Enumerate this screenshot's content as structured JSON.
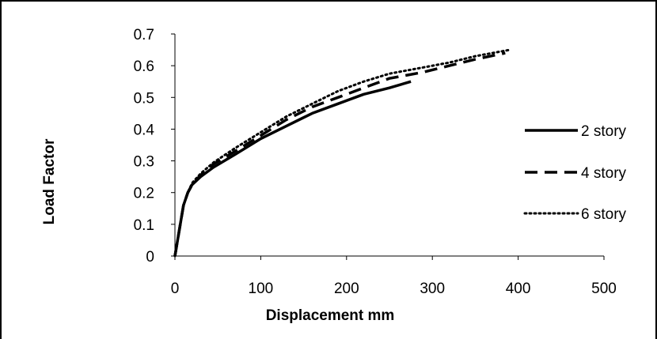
{
  "chart_data": {
    "type": "line",
    "title": "",
    "xlabel": "Displacement mm",
    "ylabel": "Load Factor",
    "xlim": [
      0,
      500
    ],
    "ylim": [
      0,
      0.7
    ],
    "x_ticks": [
      "0",
      "100",
      "200",
      "300",
      "400",
      "500"
    ],
    "y_ticks": [
      "0",
      "0.1",
      "0.2",
      "0.3",
      "0.4",
      "0.5",
      "0.6",
      "0.7"
    ],
    "grid": false,
    "legend_position": "right",
    "series": [
      {
        "name": "2 story",
        "style": "solid",
        "color": "#000000",
        "points": [
          [
            0,
            0
          ],
          [
            5,
            0.08
          ],
          [
            10,
            0.16
          ],
          [
            15,
            0.2
          ],
          [
            20,
            0.225
          ],
          [
            30,
            0.25
          ],
          [
            45,
            0.28
          ],
          [
            70,
            0.32
          ],
          [
            100,
            0.37
          ],
          [
            130,
            0.41
          ],
          [
            160,
            0.45
          ],
          [
            190,
            0.48
          ],
          [
            220,
            0.51
          ],
          [
            250,
            0.53
          ],
          [
            275,
            0.55
          ]
        ]
      },
      {
        "name": "4 story",
        "style": "dashed",
        "color": "#000000",
        "points": [
          [
            0,
            0
          ],
          [
            5,
            0.08
          ],
          [
            10,
            0.16
          ],
          [
            15,
            0.2
          ],
          [
            20,
            0.225
          ],
          [
            30,
            0.255
          ],
          [
            45,
            0.29
          ],
          [
            70,
            0.33
          ],
          [
            100,
            0.38
          ],
          [
            130,
            0.43
          ],
          [
            160,
            0.47
          ],
          [
            190,
            0.5
          ],
          [
            220,
            0.53
          ],
          [
            250,
            0.56
          ],
          [
            290,
            0.58
          ],
          [
            320,
            0.6
          ],
          [
            350,
            0.62
          ],
          [
            385,
            0.64
          ]
        ]
      },
      {
        "name": "6 story",
        "style": "dotted",
        "color": "#000000",
        "points": [
          [
            0,
            0
          ],
          [
            5,
            0.08
          ],
          [
            10,
            0.16
          ],
          [
            15,
            0.2
          ],
          [
            20,
            0.23
          ],
          [
            30,
            0.26
          ],
          [
            45,
            0.295
          ],
          [
            70,
            0.34
          ],
          [
            100,
            0.39
          ],
          [
            130,
            0.44
          ],
          [
            160,
            0.48
          ],
          [
            190,
            0.52
          ],
          [
            220,
            0.55
          ],
          [
            250,
            0.575
          ],
          [
            290,
            0.595
          ],
          [
            320,
            0.61
          ],
          [
            350,
            0.63
          ],
          [
            390,
            0.65
          ]
        ]
      }
    ]
  }
}
